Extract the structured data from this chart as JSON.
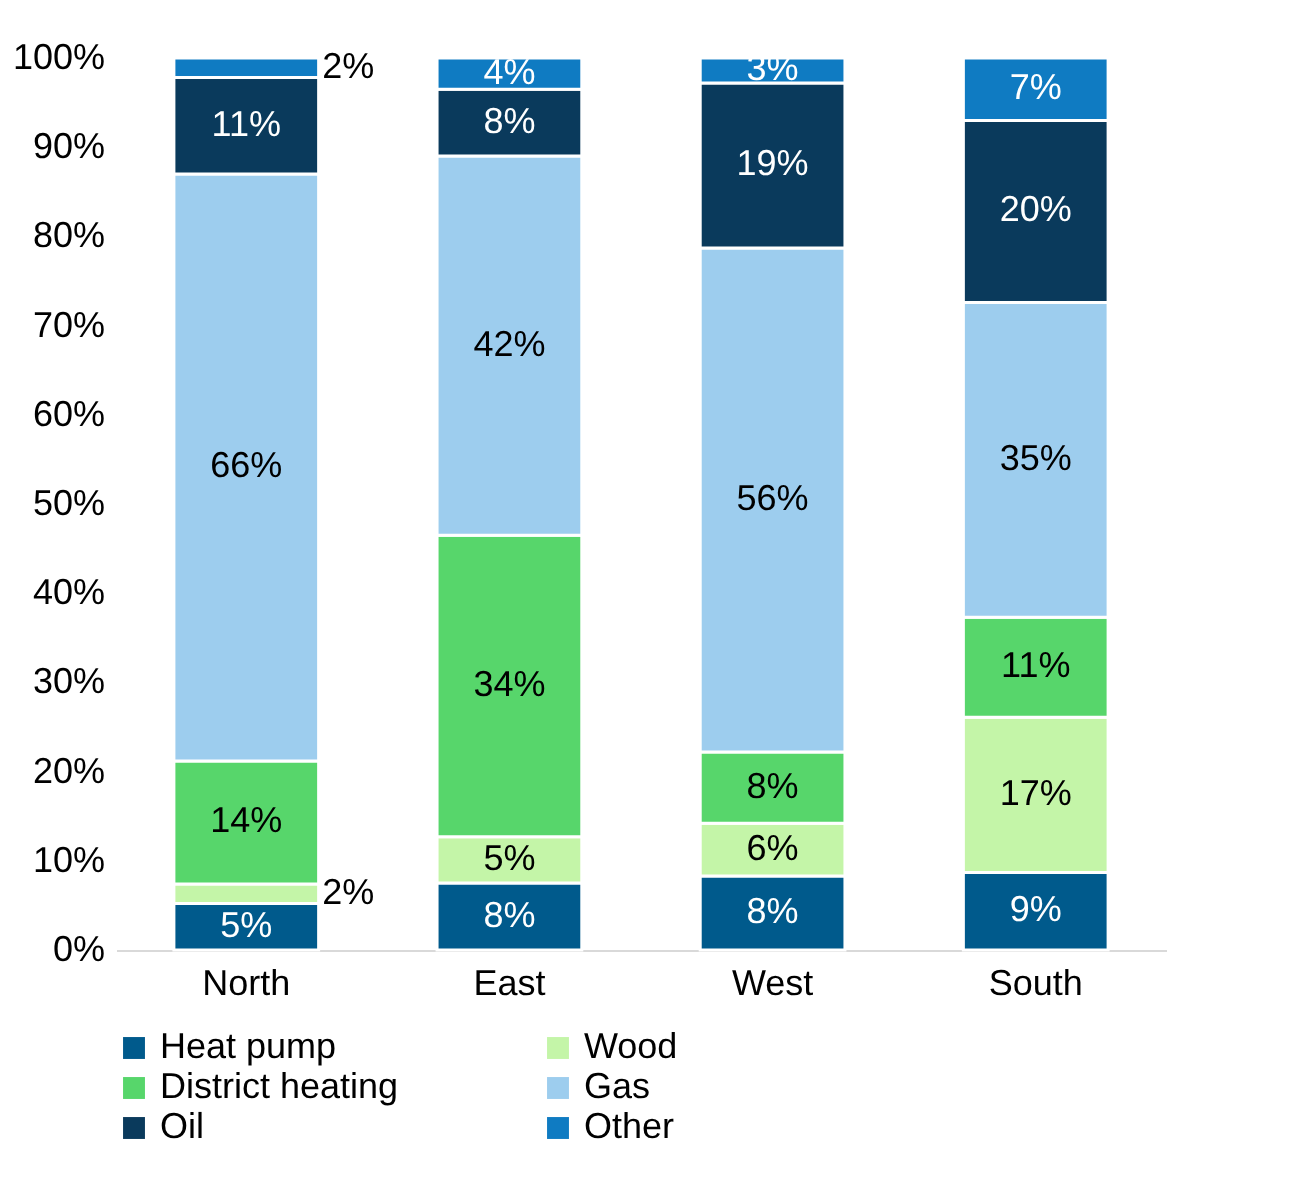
{
  "chart_data": {
    "type": "bar",
    "stacked": true,
    "categories": [
      "North",
      "East",
      "West",
      "South"
    ],
    "series": [
      {
        "name": "Heat pump",
        "color": "#005a8c",
        "values": [
          5.2,
          7.5,
          8.3,
          8.7
        ],
        "value_labels": [
          "5%",
          "8%",
          "8%",
          "9%"
        ]
      },
      {
        "name": "Wood",
        "color": "#c4f5a8",
        "values": [
          2.2,
          5.2,
          5.9,
          17.4
        ],
        "value_labels": [
          "2%",
          "5%",
          "6%",
          "17%"
        ]
      },
      {
        "name": "District heating",
        "color": "#57d66b",
        "values": [
          13.8,
          33.8,
          8,
          11.2
        ],
        "value_labels": [
          "14%",
          "34%",
          "8%",
          "11%"
        ]
      },
      {
        "name": "Gas",
        "color": "#9dcdee",
        "values": [
          65.8,
          42.5,
          56.5,
          35.3
        ],
        "value_labels": [
          "66%",
          "42%",
          "56%",
          "35%"
        ]
      },
      {
        "name": "Oil",
        "color": "#0a3a5c",
        "values": [
          10.8,
          7.5,
          18.5,
          20.4
        ],
        "value_labels": [
          "11%",
          "8%",
          "19%",
          "20%"
        ]
      },
      {
        "name": "Other",
        "color": "#0f7bc2",
        "values": [
          2.2,
          3.5,
          2.8,
          7
        ],
        "value_labels": [
          "2%",
          "4%",
          "3%",
          "7%"
        ]
      }
    ],
    "ylim": [
      0,
      100
    ],
    "yticks": [
      {
        "value": 0,
        "label": "0%"
      },
      {
        "value": 10,
        "label": "10%"
      },
      {
        "value": 20,
        "label": "20%"
      },
      {
        "value": 30,
        "label": "30%"
      },
      {
        "value": 40,
        "label": "40%"
      },
      {
        "value": 50,
        "label": "50%"
      },
      {
        "value": 60,
        "label": "60%"
      },
      {
        "value": 70,
        "label": "70%"
      },
      {
        "value": 80,
        "label": "80%"
      },
      {
        "value": 90,
        "label": "90%"
      },
      {
        "value": 100,
        "label": "100%"
      }
    ],
    "grid": false,
    "legend": "bottom"
  }
}
